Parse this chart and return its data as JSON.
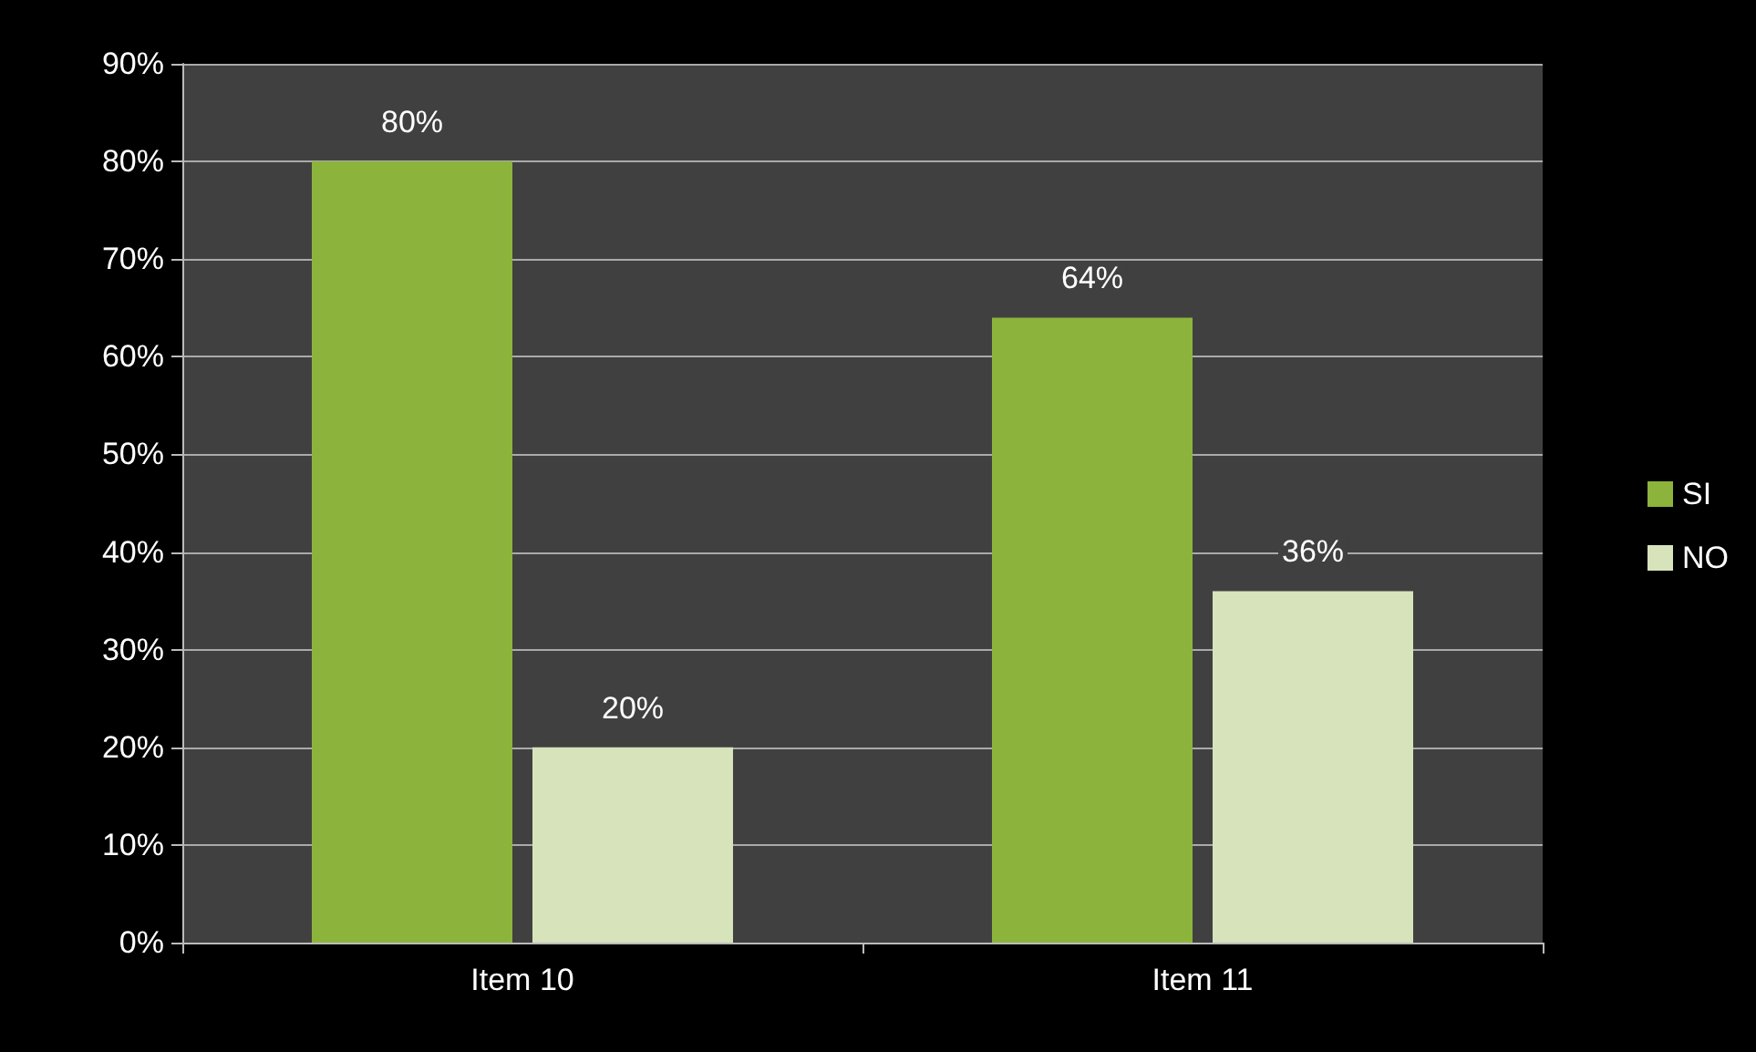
{
  "chart_data": {
    "type": "bar",
    "categories": [
      "Item 10",
      "Item 11"
    ],
    "series": [
      {
        "name": "SI",
        "color": "#8cb43c",
        "values": [
          80,
          64
        ],
        "value_labels": [
          "80%",
          "64%"
        ]
      },
      {
        "name": "NO",
        "color": "#d7e3bb",
        "values": [
          20,
          36
        ],
        "value_labels": [
          "20%",
          "36%"
        ]
      }
    ],
    "ylim": [
      0,
      90
    ],
    "yticks": [
      {
        "value": 0,
        "label": "0%"
      },
      {
        "value": 10,
        "label": "10%"
      },
      {
        "value": 20,
        "label": "20%"
      },
      {
        "value": 30,
        "label": "30%"
      },
      {
        "value": 40,
        "label": "40%"
      },
      {
        "value": 50,
        "label": "50%"
      },
      {
        "value": 60,
        "label": "60%"
      },
      {
        "value": 70,
        "label": "70%"
      },
      {
        "value": 80,
        "label": "80%"
      },
      {
        "value": 90,
        "label": "90%"
      }
    ],
    "grid": "y",
    "legend": "right"
  }
}
